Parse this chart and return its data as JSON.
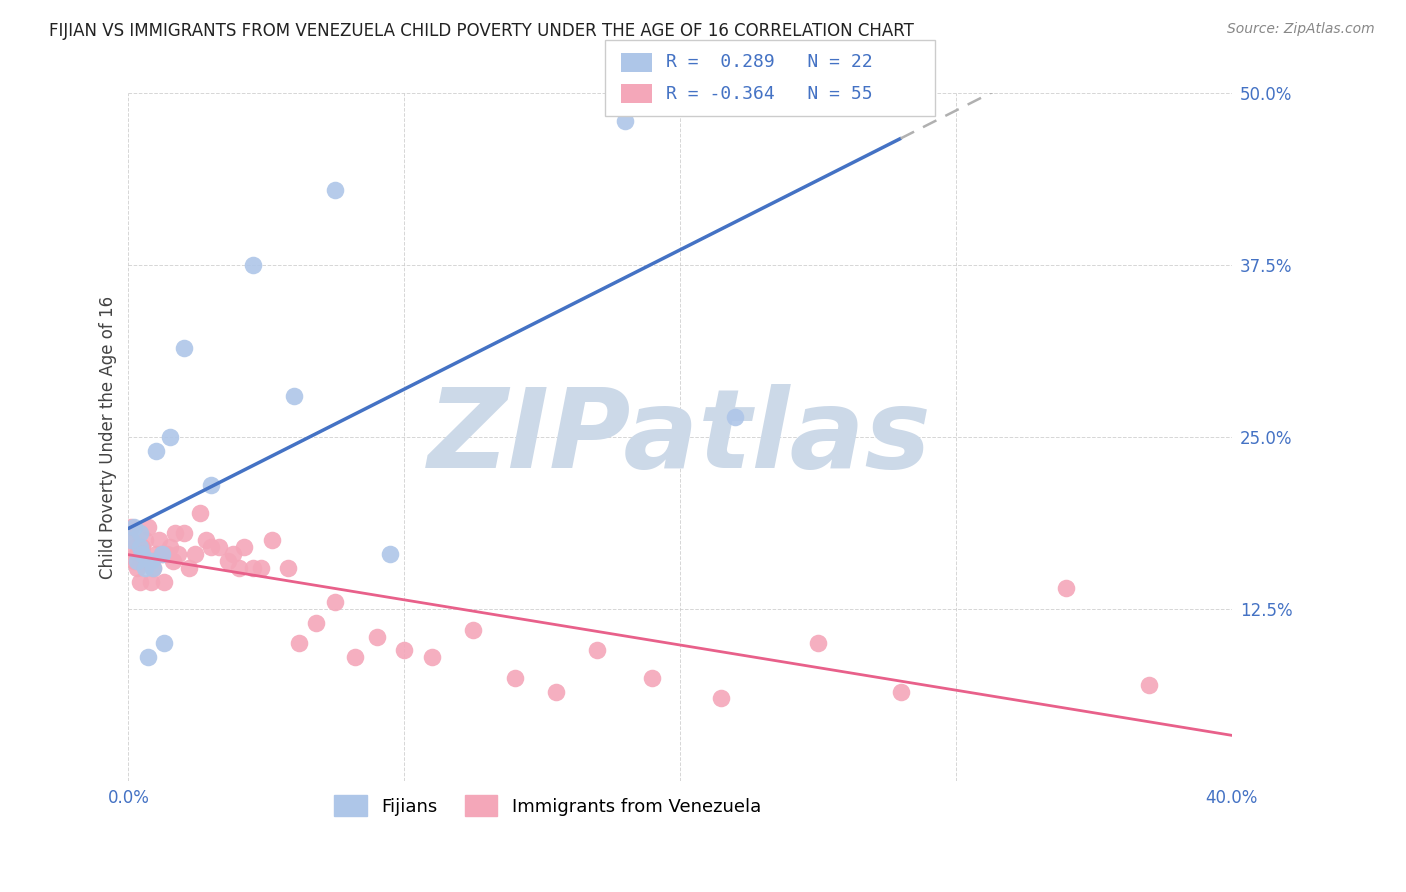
{
  "title": "FIJIAN VS IMMIGRANTS FROM VENEZUELA CHILD POVERTY UNDER THE AGE OF 16 CORRELATION CHART",
  "source": "Source: ZipAtlas.com",
  "ylabel": "Child Poverty Under the Age of 16",
  "xlim": [
    0,
    0.4
  ],
  "ylim": [
    0,
    0.5
  ],
  "xticks": [
    0.0,
    0.1,
    0.2,
    0.3,
    0.4
  ],
  "yticks": [
    0.0,
    0.125,
    0.25,
    0.375,
    0.5
  ],
  "legend_R1": "0.289",
  "legend_N1": "22",
  "legend_R2": "-0.364",
  "legend_N2": "55",
  "fijian_color": "#aec6e8",
  "venezuela_color": "#f4a7b9",
  "fijian_line_color": "#4472c4",
  "venezuela_line_color": "#e8608a",
  "dashed_line_color": "#b0b0b0",
  "fijian_label": "Fijians",
  "venezuela_label": "Immigrants from Venezuela",
  "fijian_x": [
    0.001,
    0.002,
    0.003,
    0.004,
    0.004,
    0.005,
    0.006,
    0.007,
    0.008,
    0.009,
    0.01,
    0.012,
    0.013,
    0.015,
    0.02,
    0.03,
    0.045,
    0.06,
    0.075,
    0.095,
    0.18,
    0.22
  ],
  "fijian_y": [
    0.175,
    0.185,
    0.16,
    0.17,
    0.18,
    0.165,
    0.155,
    0.09,
    0.16,
    0.155,
    0.24,
    0.165,
    0.1,
    0.25,
    0.315,
    0.215,
    0.375,
    0.28,
    0.43,
    0.165,
    0.48,
    0.265
  ],
  "venezuela_x": [
    0.001,
    0.001,
    0.002,
    0.002,
    0.003,
    0.003,
    0.004,
    0.004,
    0.005,
    0.005,
    0.006,
    0.007,
    0.008,
    0.009,
    0.01,
    0.011,
    0.012,
    0.013,
    0.014,
    0.015,
    0.016,
    0.017,
    0.018,
    0.02,
    0.022,
    0.024,
    0.026,
    0.028,
    0.03,
    0.033,
    0.036,
    0.038,
    0.04,
    0.042,
    0.045,
    0.048,
    0.052,
    0.058,
    0.062,
    0.068,
    0.075,
    0.082,
    0.09,
    0.1,
    0.11,
    0.125,
    0.14,
    0.155,
    0.17,
    0.19,
    0.215,
    0.25,
    0.28,
    0.34,
    0.37
  ],
  "venezuela_y": [
    0.185,
    0.175,
    0.17,
    0.16,
    0.165,
    0.155,
    0.17,
    0.145,
    0.16,
    0.17,
    0.175,
    0.185,
    0.145,
    0.155,
    0.165,
    0.175,
    0.165,
    0.145,
    0.165,
    0.17,
    0.16,
    0.18,
    0.165,
    0.18,
    0.155,
    0.165,
    0.195,
    0.175,
    0.17,
    0.17,
    0.16,
    0.165,
    0.155,
    0.17,
    0.155,
    0.155,
    0.175,
    0.155,
    0.1,
    0.115,
    0.13,
    0.09,
    0.105,
    0.095,
    0.09,
    0.11,
    0.075,
    0.065,
    0.095,
    0.075,
    0.06,
    0.1,
    0.065,
    0.14,
    0.07
  ],
  "background_color": "#ffffff",
  "watermark_color": "#ccd9e8"
}
